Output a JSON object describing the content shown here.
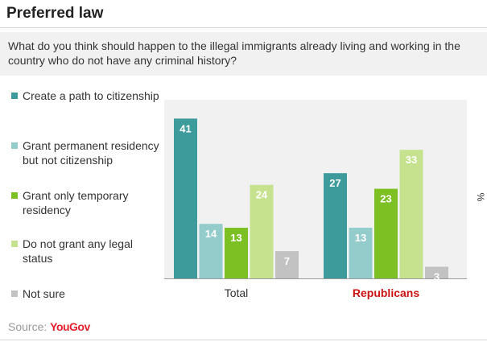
{
  "title": "Preferred law",
  "question": "What do you think should happen to the illegal immigrants already living and working in the country who do not have any criminal history?",
  "source": {
    "label": "Source:",
    "brand": "YouGov"
  },
  "unit_label": "%",
  "colors": {
    "Create a path to citizenship": "#3d9b9b",
    "Grant permanent residency but not citizenship": "#94cbcb",
    "Grant only temporary residency": "#7cc024",
    "Do not grant any legal status": "#c6e28e",
    "Not sure": "#c2c2c2",
    "republicans_label": "#cc1111"
  },
  "chart_data": {
    "type": "bar",
    "title": "Preferred law",
    "categories": [
      "Total",
      "Republicans"
    ],
    "series": [
      {
        "name": "Create a path to citizenship",
        "values": [
          41,
          27
        ]
      },
      {
        "name": "Grant permanent residency but not citizenship",
        "values": [
          14,
          13
        ]
      },
      {
        "name": "Grant only temporary residency",
        "values": [
          13,
          23
        ]
      },
      {
        "name": "Do not grant any legal status",
        "values": [
          24,
          33
        ]
      },
      {
        "name": "Not sure",
        "values": [
          7,
          3
        ]
      }
    ],
    "ylabel": "%",
    "ylim": [
      0,
      45
    ],
    "grid": false,
    "legend_position": "left"
  }
}
